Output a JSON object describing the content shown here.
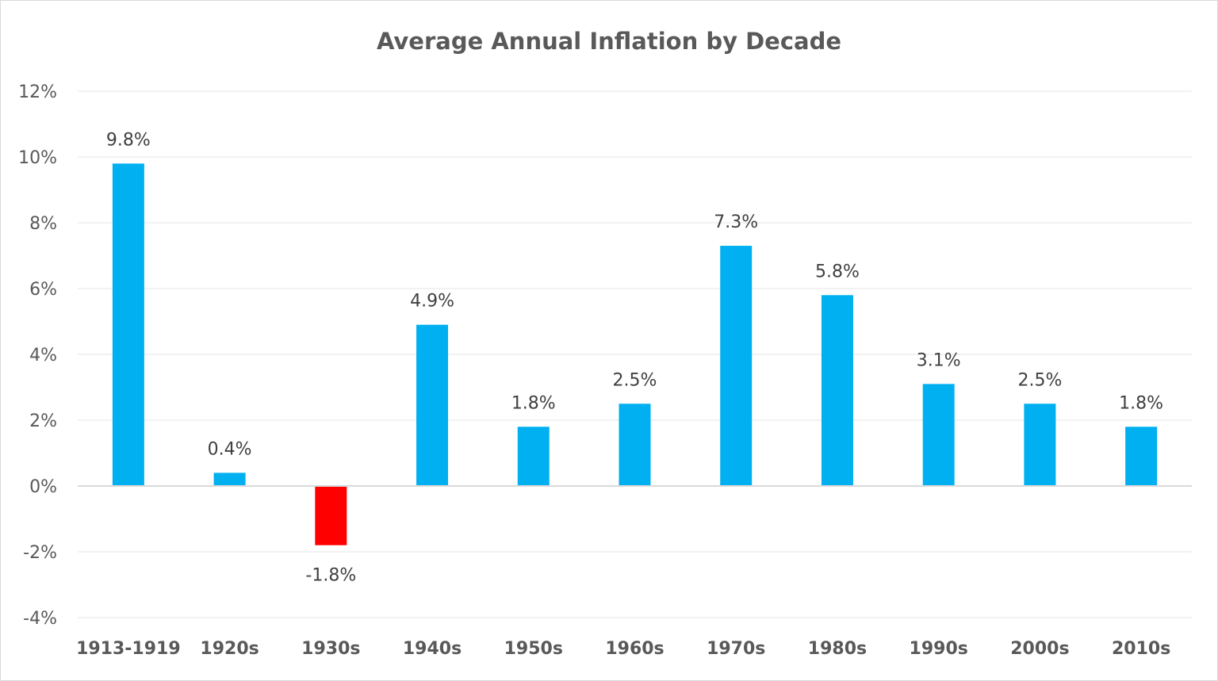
{
  "chart_data": {
    "type": "bar",
    "title": "Average Annual Inflation by Decade",
    "xlabel": "",
    "ylabel": "",
    "categories": [
      "1913-1919",
      "1920s",
      "1930s",
      "1940s",
      "1950s",
      "1960s",
      "1970s",
      "1980s",
      "1990s",
      "2000s",
      "2010s"
    ],
    "values": [
      9.8,
      0.4,
      -1.8,
      4.9,
      1.8,
      2.5,
      7.3,
      5.8,
      3.1,
      2.5,
      1.8
    ],
    "data_labels": [
      "9.8%",
      "0.4%",
      "-1.8%",
      "4.9%",
      "1.8%",
      "2.5%",
      "7.3%",
      "5.8%",
      "3.1%",
      "2.5%",
      "1.8%"
    ],
    "ylim": [
      -4,
      12
    ],
    "yticks": [
      12,
      10,
      8,
      6,
      4,
      2,
      0,
      -2,
      -4
    ],
    "ytick_labels": [
      "12%",
      "10%",
      "8%",
      "6%",
      "4%",
      "2%",
      "0%",
      "-2%",
      "-4%"
    ],
    "grid": true,
    "legend": "none",
    "colors": {
      "positive": "#00b0f0",
      "negative": "#ff0000",
      "gridline": "#e6e6e6",
      "zero_line": "#d9d9d9",
      "text": "#595959"
    }
  }
}
